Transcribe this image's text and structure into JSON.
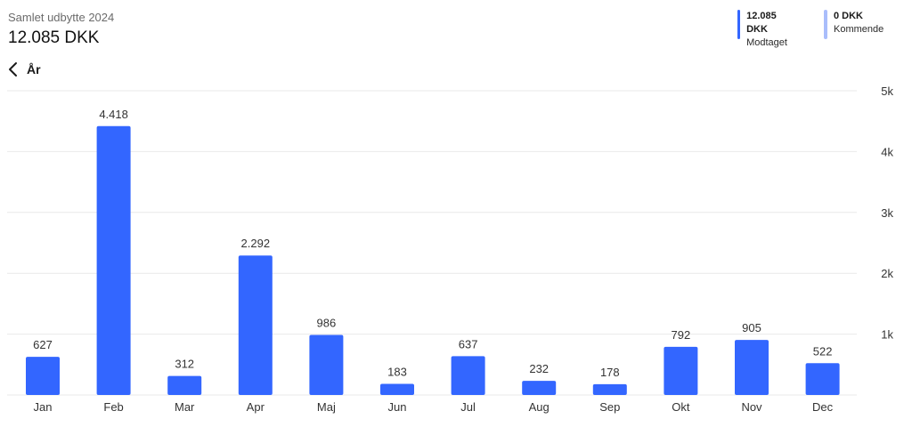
{
  "header": {
    "subtitle": "Samlet udbytte 2024",
    "total": "12.085 DKK"
  },
  "legend": [
    {
      "value": "12.085 DKK",
      "label": "Modtaget",
      "color": "#3366ff"
    },
    {
      "value": "0 DKK",
      "label": "Kommende",
      "color": "#a9bdfb"
    }
  ],
  "nav": {
    "back_label": "År"
  },
  "colors": {
    "bar": "#3366ff",
    "grid": "#e9e9e9"
  },
  "chart_data": {
    "type": "bar",
    "categories": [
      "Jan",
      "Feb",
      "Mar",
      "Apr",
      "Maj",
      "Jun",
      "Jul",
      "Aug",
      "Sep",
      "Okt",
      "Nov",
      "Dec"
    ],
    "values": [
      627,
      4418,
      312,
      2292,
      986,
      183,
      637,
      232,
      178,
      792,
      905,
      522
    ],
    "data_labels": [
      "627",
      "4.418",
      "312",
      "2.292",
      "986",
      "183",
      "637",
      "232",
      "178",
      "792",
      "905",
      "522"
    ],
    "y_ticks": [
      1000,
      2000,
      3000,
      4000,
      5000
    ],
    "y_tick_labels": [
      "1k",
      "2k",
      "3k",
      "4k",
      "5k"
    ],
    "ylim": [
      0,
      5000
    ],
    "y_axis_position": "right",
    "grid": true
  }
}
